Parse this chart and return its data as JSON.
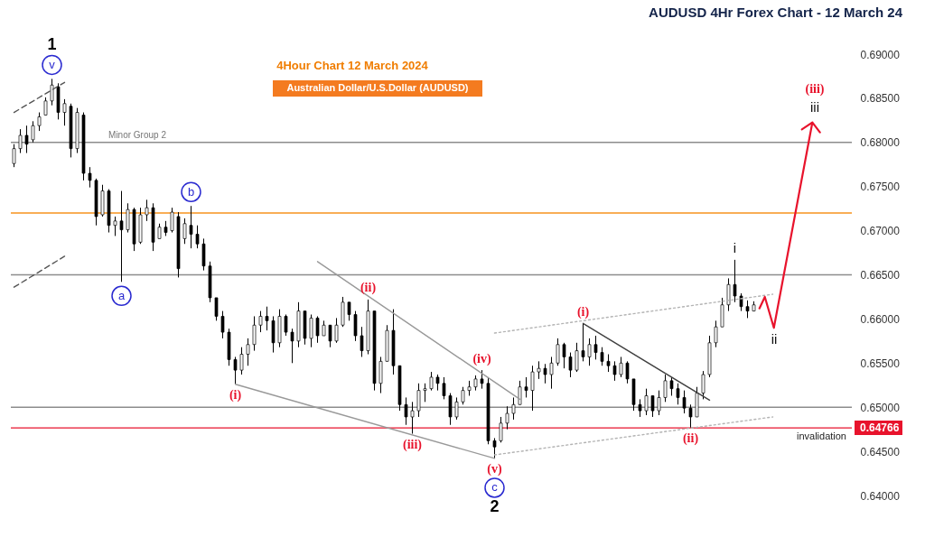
{
  "chart_data": {
    "type": "candlestick",
    "title": "AUDUSD 4Hr Forex Chart - 12 March 24",
    "subtitle": "4Hour Chart 12 March 2024",
    "categories": [
      null,
      null,
      null,
      null,
      null,
      null,
      null,
      null,
      null,
      null,
      null,
      null,
      null,
      null,
      null,
      null,
      null,
      null,
      null,
      null,
      null,
      null,
      null,
      null,
      null,
      null,
      null,
      null,
      null,
      null,
      null,
      null,
      null,
      null,
      null,
      null,
      null,
      null,
      null,
      null,
      null,
      null,
      null,
      null,
      null,
      null,
      null,
      null,
      null,
      null,
      null,
      null,
      null,
      null,
      null,
      null,
      null,
      null,
      null,
      null,
      null,
      null,
      null,
      null,
      null,
      null,
      null,
      null,
      null,
      null,
      null,
      null,
      null,
      null,
      null,
      null,
      null,
      null,
      null,
      null,
      null,
      null,
      null,
      null,
      null,
      null,
      null,
      null,
      null,
      null,
      null,
      null,
      null,
      null,
      null,
      null,
      null,
      null,
      null,
      null,
      null,
      null,
      null,
      null,
      null,
      null,
      null,
      null,
      null,
      null,
      null,
      null,
      null,
      null,
      null,
      null,
      null,
      null,
      null,
      null,
      null,
      null,
      null,
      null,
      null,
      null,
      null,
      null,
      null,
      null,
      null,
      null,
      null
    ],
    "color": "#000000",
    "ohlc": [
      [
        0.6776,
        0.6798,
        0.6772,
        0.6793
      ],
      [
        0.6793,
        0.6815,
        0.6788,
        0.6808
      ],
      [
        0.6808,
        0.6819,
        0.6788,
        0.6798
      ],
      [
        0.6803,
        0.6824,
        0.68,
        0.6819
      ],
      [
        0.6819,
        0.6834,
        0.6813,
        0.6829
      ],
      [
        0.6831,
        0.6851,
        0.6831,
        0.6847
      ],
      [
        0.6847,
        0.6872,
        0.6842,
        0.6865
      ],
      [
        0.6863,
        0.6867,
        0.6826,
        0.6834
      ],
      [
        0.6834,
        0.6849,
        0.6819,
        0.6844
      ],
      [
        0.6841,
        0.6844,
        0.6783,
        0.6793
      ],
      [
        0.6793,
        0.6839,
        0.6788,
        0.6834
      ],
      [
        0.6831,
        0.6834,
        0.6757,
        0.6765
      ],
      [
        0.6765,
        0.6772,
        0.6749,
        0.6757
      ],
      [
        0.6757,
        0.6759,
        0.6706,
        0.6716
      ],
      [
        0.6718,
        0.6752,
        0.6716,
        0.6745
      ],
      [
        0.6745,
        0.6747,
        0.6698,
        0.6706
      ],
      [
        0.6706,
        0.6716,
        0.6694,
        0.6711
      ],
      [
        0.6711,
        0.6745,
        0.6642,
        0.6701
      ],
      [
        0.6701,
        0.6731,
        0.6698,
        0.6724
      ],
      [
        0.6724,
        0.6726,
        0.6677,
        0.6685
      ],
      [
        0.6687,
        0.6726,
        0.6685,
        0.6718
      ],
      [
        0.6718,
        0.6735,
        0.6711,
        0.6726
      ],
      [
        0.6726,
        0.6731,
        0.6677,
        0.6687
      ],
      [
        0.6691,
        0.6708,
        0.6691,
        0.6704
      ],
      [
        0.6704,
        0.6711,
        0.6694,
        0.6698
      ],
      [
        0.67,
        0.6726,
        0.6698,
        0.6721
      ],
      [
        0.6716,
        0.6721,
        0.6647,
        0.6657
      ],
      [
        0.6691,
        0.6714,
        0.6685,
        0.6708
      ],
      [
        0.6706,
        0.6728,
        0.668,
        0.6696
      ],
      [
        0.6696,
        0.6706,
        0.668,
        0.6685
      ],
      [
        0.6685,
        0.6691,
        0.6655,
        0.666
      ],
      [
        0.666,
        0.6665,
        0.6619,
        0.6624
      ],
      [
        0.6624,
        0.6624,
        0.6598,
        0.6603
      ],
      [
        0.6603,
        0.6609,
        0.6578,
        0.6585
      ],
      [
        0.6585,
        0.6589,
        0.6547,
        0.6554
      ],
      [
        0.6554,
        0.6557,
        0.6526,
        0.6542
      ],
      [
        0.6542,
        0.6568,
        0.6537,
        0.656
      ],
      [
        0.656,
        0.6578,
        0.6547,
        0.6571
      ],
      [
        0.6571,
        0.6603,
        0.6564,
        0.6593
      ],
      [
        0.6593,
        0.6609,
        0.6585,
        0.6603
      ],
      [
        0.6603,
        0.6614,
        0.6587,
        0.6598
      ],
      [
        0.6598,
        0.6603,
        0.6562,
        0.6573
      ],
      [
        0.6573,
        0.6611,
        0.6568,
        0.6603
      ],
      [
        0.6603,
        0.6605,
        0.6581,
        0.6585
      ],
      [
        0.6585,
        0.6589,
        0.655,
        0.6575
      ],
      [
        0.6575,
        0.6619,
        0.6568,
        0.6609
      ],
      [
        0.6609,
        0.6609,
        0.6571,
        0.6578
      ],
      [
        0.6578,
        0.6605,
        0.6568,
        0.6601
      ],
      [
        0.6601,
        0.6603,
        0.6573,
        0.6581
      ],
      [
        0.6581,
        0.6598,
        0.6581,
        0.6593
      ],
      [
        0.6593,
        0.6593,
        0.6568,
        0.6575
      ],
      [
        0.6575,
        0.6601,
        0.6573,
        0.6593
      ],
      [
        0.6593,
        0.6625,
        0.6591,
        0.6619
      ],
      [
        0.6619,
        0.6619,
        0.6598,
        0.6605
      ],
      [
        0.6605,
        0.6609,
        0.6575,
        0.6581
      ],
      [
        0.6581,
        0.6591,
        0.6557,
        0.6564
      ],
      [
        0.6564,
        0.6622,
        0.656,
        0.6609
      ],
      [
        0.6609,
        0.6609,
        0.6519,
        0.6527
      ],
      [
        0.6527,
        0.6557,
        0.6516,
        0.6552
      ],
      [
        0.6552,
        0.6593,
        0.6552,
        0.6587
      ],
      [
        0.6587,
        0.6611,
        0.6537,
        0.6547
      ],
      [
        0.6547,
        0.6547,
        0.6496,
        0.6503
      ],
      [
        0.6503,
        0.6511,
        0.648,
        0.6489
      ],
      [
        0.6489,
        0.6506,
        0.647,
        0.6496
      ],
      [
        0.6496,
        0.6527,
        0.6489,
        0.6519
      ],
      [
        0.6519,
        0.6527,
        0.6506,
        0.6521
      ],
      [
        0.6521,
        0.654,
        0.6519,
        0.6534
      ],
      [
        0.6534,
        0.6537,
        0.6519,
        0.6527
      ],
      [
        0.6527,
        0.6534,
        0.6509,
        0.6513
      ],
      [
        0.6513,
        0.6516,
        0.648,
        0.6489
      ],
      [
        0.6489,
        0.6511,
        0.6486,
        0.6506
      ],
      [
        0.6506,
        0.6523,
        0.6503,
        0.6519
      ],
      [
        0.6519,
        0.653,
        0.6513,
        0.6523
      ],
      [
        0.6523,
        0.6536,
        0.6519,
        0.6532
      ],
      [
        0.6532,
        0.6542,
        0.6521,
        0.6527
      ],
      [
        0.6527,
        0.6534,
        0.6458,
        0.6462
      ],
      [
        0.6462,
        0.6465,
        0.6442,
        0.6455
      ],
      [
        0.6462,
        0.6489,
        0.646,
        0.6482
      ],
      [
        0.6482,
        0.6501,
        0.6475,
        0.6493
      ],
      [
        0.6493,
        0.6511,
        0.6486,
        0.6503
      ],
      [
        0.6503,
        0.653,
        0.6503,
        0.6523
      ],
      [
        0.6523,
        0.6534,
        0.6511,
        0.6519
      ],
      [
        0.6519,
        0.6547,
        0.6496,
        0.654
      ],
      [
        0.654,
        0.6552,
        0.6532,
        0.6544
      ],
      [
        0.6544,
        0.6549,
        0.6527,
        0.6537
      ],
      [
        0.6537,
        0.6557,
        0.6521,
        0.655
      ],
      [
        0.655,
        0.6578,
        0.6547,
        0.6571
      ],
      [
        0.6571,
        0.6573,
        0.6544,
        0.6557
      ],
      [
        0.6557,
        0.6562,
        0.6534,
        0.6542
      ],
      [
        0.6542,
        0.6573,
        0.654,
        0.6564
      ],
      [
        0.6564,
        0.6595,
        0.6552,
        0.6557
      ],
      [
        0.6557,
        0.6578,
        0.6547,
        0.6571
      ],
      [
        0.6571,
        0.6581,
        0.6554,
        0.6562
      ],
      [
        0.6562,
        0.6568,
        0.6547,
        0.6552
      ],
      [
        0.6552,
        0.656,
        0.654,
        0.6547
      ],
      [
        0.6547,
        0.6552,
        0.653,
        0.6537
      ],
      [
        0.6537,
        0.6557,
        0.6534,
        0.655
      ],
      [
        0.655,
        0.6552,
        0.6527,
        0.6532
      ],
      [
        0.6532,
        0.6532,
        0.6496,
        0.6503
      ],
      [
        0.6503,
        0.6509,
        0.6489,
        0.6496
      ],
      [
        0.6496,
        0.6521,
        0.6491,
        0.6513
      ],
      [
        0.6513,
        0.6513,
        0.6489,
        0.6496
      ],
      [
        0.6496,
        0.6519,
        0.6491,
        0.6511
      ],
      [
        0.6511,
        0.6537,
        0.6506,
        0.653
      ],
      [
        0.653,
        0.6534,
        0.6513,
        0.6521
      ],
      [
        0.6521,
        0.6527,
        0.6503,
        0.6511
      ],
      [
        0.6511,
        0.6519,
        0.6493,
        0.6499
      ],
      [
        0.6499,
        0.6503,
        0.6477,
        0.6489
      ],
      [
        0.6489,
        0.6523,
        0.6489,
        0.6516
      ],
      [
        0.6516,
        0.6541,
        0.6509,
        0.6537
      ],
      [
        0.6537,
        0.6581,
        0.6534,
        0.6573
      ],
      [
        0.6573,
        0.6598,
        0.6568,
        0.6591
      ],
      [
        0.6591,
        0.6624,
        0.6591,
        0.6616
      ],
      [
        0.6616,
        0.6646,
        0.6609,
        0.6639
      ],
      [
        0.6639,
        0.6667,
        0.6619,
        0.6626
      ],
      [
        0.6626,
        0.6629,
        0.6609,
        0.6614
      ],
      [
        0.6614,
        0.6621,
        0.6601,
        0.6609
      ],
      [
        0.6609,
        0.662,
        0.6609,
        0.6616
      ],
      null,
      null,
      null,
      null,
      null,
      null,
      null,
      null,
      null,
      null,
      null,
      null,
      null,
      null,
      null
    ],
    "series": [
      {
        "type": "line",
        "color": "#555555",
        "line_style": "dashed",
        "values": [
          0.6834,
          null,
          null,
          null,
          null,
          null,
          null,
          null,
          0.6868,
          null,
          null,
          null,
          null,
          null,
          null,
          null,
          null,
          null,
          null,
          null,
          null,
          null,
          null,
          null,
          null,
          null,
          null,
          null,
          null,
          null,
          null,
          null,
          null,
          null,
          null,
          null,
          null,
          null,
          null,
          null,
          null,
          null,
          null,
          null,
          null,
          null,
          null,
          null,
          null,
          null,
          null,
          null,
          null,
          null,
          null,
          null,
          null,
          null,
          null,
          null,
          null,
          null,
          null,
          null,
          null,
          null,
          null,
          null,
          null,
          null,
          null,
          null,
          null,
          null,
          null,
          null,
          null,
          null,
          null,
          null,
          null,
          null,
          null,
          null,
          null,
          null,
          null,
          null,
          null,
          null,
          null,
          null,
          null,
          null,
          null,
          null,
          null,
          null,
          null,
          null,
          null,
          null,
          null,
          null,
          null,
          null,
          null,
          null,
          null,
          null,
          null,
          null,
          null,
          null,
          null,
          null,
          null,
          null,
          null,
          null,
          null,
          null,
          null,
          null,
          null,
          null,
          null,
          null,
          null,
          null,
          null,
          null,
          null
        ]
      },
      {
        "type": "line",
        "color": "#555555",
        "line_style": "dashed",
        "values": [
          0.6636,
          null,
          null,
          null,
          null,
          null,
          null,
          null,
          0.6671,
          null,
          null,
          null,
          null,
          null,
          null,
          null,
          null,
          null,
          null,
          null,
          null,
          null,
          null,
          null,
          null,
          null,
          null,
          null,
          null,
          null,
          null,
          null,
          null,
          null,
          null,
          null,
          null,
          null,
          null,
          null,
          null,
          null,
          null,
          null,
          null,
          null,
          null,
          null,
          null,
          null,
          null,
          null,
          null,
          null,
          null,
          null,
          null,
          null,
          null,
          null,
          null,
          null,
          null,
          null,
          null,
          null,
          null,
          null,
          null,
          null,
          null,
          null,
          null,
          null,
          null,
          null,
          null,
          null,
          null,
          null,
          null,
          null,
          null,
          null,
          null,
          null,
          null,
          null,
          null,
          null,
          null,
          null,
          null,
          null,
          null,
          null,
          null,
          null,
          null,
          null,
          null,
          null,
          null,
          null,
          null,
          null,
          null,
          null,
          null,
          null,
          null,
          null,
          null,
          null,
          null,
          null,
          null,
          null,
          null,
          null,
          null,
          null,
          null,
          null,
          null,
          null,
          null,
          null,
          null,
          null,
          null,
          null,
          null
        ]
      },
      {
        "type": "line",
        "color": "#999999",
        "values": [
          null,
          null,
          null,
          null,
          null,
          null,
          null,
          null,
          null,
          null,
          null,
          null,
          null,
          null,
          null,
          null,
          null,
          null,
          null,
          null,
          null,
          null,
          null,
          null,
          null,
          null,
          null,
          null,
          null,
          null,
          null,
          null,
          null,
          null,
          null,
          null,
          null,
          null,
          null,
          null,
          null,
          null,
          null,
          null,
          null,
          null,
          null,
          null,
          0.6665,
          null,
          null,
          null,
          null,
          null,
          null,
          null,
          null,
          null,
          null,
          null,
          null,
          null,
          null,
          null,
          null,
          null,
          null,
          null,
          null,
          null,
          null,
          null,
          null,
          null,
          null,
          null,
          null,
          null,
          null,
          null,
          0.6509,
          null,
          null,
          null,
          null,
          null,
          null,
          null,
          null,
          null,
          null,
          null,
          null,
          null,
          null,
          null,
          null,
          null,
          null,
          null,
          null,
          null,
          null,
          null,
          null,
          null,
          null,
          null,
          null,
          null,
          null,
          null,
          null,
          null,
          null,
          null,
          null,
          null,
          null,
          null,
          null,
          null,
          null,
          null,
          null,
          null,
          null,
          null,
          null,
          null,
          null,
          null,
          null
        ]
      },
      {
        "type": "line",
        "color": "#999999",
        "values": [
          null,
          null,
          null,
          null,
          null,
          null,
          null,
          null,
          null,
          null,
          null,
          null,
          null,
          null,
          null,
          null,
          null,
          null,
          null,
          null,
          null,
          null,
          null,
          null,
          null,
          null,
          null,
          null,
          null,
          null,
          null,
          null,
          null,
          null,
          null,
          0.6526,
          null,
          null,
          null,
          null,
          null,
          null,
          null,
          null,
          null,
          null,
          null,
          null,
          null,
          null,
          null,
          null,
          null,
          null,
          null,
          null,
          null,
          null,
          null,
          null,
          null,
          null,
          null,
          null,
          null,
          null,
          null,
          null,
          null,
          null,
          null,
          null,
          null,
          null,
          null,
          null,
          0.6442,
          null,
          null,
          null,
          null,
          null,
          null,
          null,
          null,
          null,
          null,
          null,
          null,
          null,
          null,
          null,
          null,
          null,
          null,
          null,
          null,
          null,
          null,
          null,
          null,
          null,
          null,
          null,
          null,
          null,
          null,
          null,
          null,
          null,
          null,
          null,
          null,
          null,
          null,
          null,
          null,
          null,
          null,
          null,
          null,
          null,
          null,
          null,
          null,
          null,
          null,
          null,
          null,
          null,
          null,
          null,
          null
        ]
      },
      {
        "type": "line",
        "color": "#b4b4b4",
        "line_style": "dotted",
        "values": [
          null,
          null,
          null,
          null,
          null,
          null,
          null,
          null,
          null,
          null,
          null,
          null,
          null,
          null,
          null,
          null,
          null,
          null,
          null,
          null,
          null,
          null,
          null,
          null,
          null,
          null,
          null,
          null,
          null,
          null,
          null,
          null,
          null,
          null,
          null,
          null,
          null,
          null,
          null,
          null,
          null,
          null,
          null,
          null,
          null,
          null,
          null,
          null,
          null,
          null,
          null,
          null,
          null,
          null,
          null,
          null,
          null,
          null,
          null,
          null,
          null,
          null,
          null,
          null,
          null,
          null,
          null,
          null,
          null,
          null,
          null,
          null,
          null,
          null,
          null,
          null,
          0.6584,
          null,
          null,
          null,
          null,
          null,
          null,
          null,
          null,
          null,
          null,
          null,
          null,
          null,
          null,
          null,
          null,
          null,
          null,
          null,
          null,
          null,
          null,
          null,
          null,
          null,
          null,
          null,
          null,
          null,
          null,
          null,
          null,
          null,
          null,
          null,
          null,
          null,
          null,
          null,
          null,
          null,
          null,
          null,
          0.6628,
          null,
          null,
          null,
          null,
          null,
          null,
          null,
          null,
          null,
          null,
          null,
          null
        ]
      },
      {
        "type": "line",
        "color": "#b4b4b4",
        "line_style": "dotted",
        "values": [
          null,
          null,
          null,
          null,
          null,
          null,
          null,
          null,
          null,
          null,
          null,
          null,
          null,
          null,
          null,
          null,
          null,
          null,
          null,
          null,
          null,
          null,
          null,
          null,
          null,
          null,
          null,
          null,
          null,
          null,
          null,
          null,
          null,
          null,
          null,
          null,
          null,
          null,
          null,
          null,
          null,
          null,
          null,
          null,
          null,
          null,
          null,
          null,
          null,
          null,
          null,
          null,
          null,
          null,
          null,
          null,
          null,
          null,
          null,
          null,
          null,
          null,
          null,
          null,
          null,
          null,
          null,
          null,
          null,
          null,
          null,
          null,
          null,
          null,
          null,
          null,
          0.6446,
          null,
          null,
          null,
          null,
          null,
          null,
          null,
          null,
          null,
          null,
          null,
          null,
          null,
          null,
          null,
          null,
          null,
          null,
          null,
          null,
          null,
          null,
          null,
          null,
          null,
          null,
          null,
          null,
          null,
          null,
          null,
          null,
          null,
          null,
          null,
          null,
          null,
          null,
          null,
          null,
          null,
          null,
          null,
          0.6489,
          null,
          null,
          null,
          null,
          null,
          null,
          null,
          null,
          null,
          null,
          null,
          null
        ]
      },
      {
        "type": "line",
        "color": "#404040",
        "values": [
          null,
          null,
          null,
          null,
          null,
          null,
          null,
          null,
          null,
          null,
          null,
          null,
          null,
          null,
          null,
          null,
          null,
          null,
          null,
          null,
          null,
          null,
          null,
          null,
          null,
          null,
          null,
          null,
          null,
          null,
          null,
          null,
          null,
          null,
          null,
          null,
          null,
          null,
          null,
          null,
          null,
          null,
          null,
          null,
          null,
          null,
          null,
          null,
          null,
          null,
          null,
          null,
          null,
          null,
          null,
          null,
          null,
          null,
          null,
          null,
          null,
          null,
          null,
          null,
          null,
          null,
          null,
          null,
          null,
          null,
          null,
          null,
          null,
          null,
          null,
          null,
          null,
          null,
          null,
          null,
          null,
          null,
          null,
          null,
          null,
          null,
          null,
          null,
          null,
          null,
          0.6595,
          null,
          null,
          null,
          null,
          null,
          null,
          null,
          null,
          null,
          null,
          null,
          null,
          null,
          null,
          null,
          null,
          null,
          null,
          null,
          0.6508,
          null,
          null,
          null,
          null,
          null,
          null,
          null,
          null,
          null,
          null,
          null,
          null,
          null,
          null,
          null,
          null,
          null,
          null,
          null,
          null,
          null,
          null
        ]
      }
    ],
    "ylim": [
      0.64,
      0.69
    ],
    "yticks": [
      {
        "value": 0.64,
        "label": "0.64000"
      },
      {
        "value": 0.645,
        "label": "0.64500"
      },
      {
        "value": 0.64766,
        "label": "0.64766"
      },
      {
        "value": 0.65,
        "label": "0.65000"
      },
      {
        "value": 0.655,
        "label": "0.65500"
      },
      {
        "value": 0.66,
        "label": "0.66000"
      },
      {
        "value": 0.665,
        "label": "0.66500"
      },
      {
        "value": 0.67,
        "label": "0.67000"
      },
      {
        "value": 0.675,
        "label": "0.67500"
      },
      {
        "value": 0.68,
        "label": "0.68000"
      },
      {
        "value": 0.685,
        "label": "0.68500"
      },
      {
        "value": 0.69,
        "label": "0.69000"
      }
    ],
    "tick_labels": "y",
    "ref_lines": [
      {
        "axis": "y",
        "value": 0.68,
        "label": "Minor Group 2",
        "color": "#8c8c8c"
      },
      {
        "axis": "y",
        "value": 0.672,
        "color": "#f7931e"
      },
      {
        "axis": "y",
        "value": 0.665,
        "color": "#8c8c8c"
      },
      {
        "axis": "y",
        "value": 0.65,
        "color": "#8c8c8c"
      },
      {
        "axis": "y",
        "value": 0.64766,
        "label": "invalidation",
        "color": "#e8132c"
      }
    ],
    "annotations": [
      "Australian Dollar/U.S.Dollar (AUDUSD)",
      {
        "text": "v",
        "y": 0.6872
      },
      {
        "text": "1",
        "y": 0.6872
      },
      {
        "text": "a",
        "y": 0.6642
      },
      {
        "text": "b",
        "y": 0.6728
      },
      {
        "text": "(i)",
        "y": 0.6526
      },
      {
        "text": "(ii)",
        "y": 0.6622
      },
      {
        "text": "(iii)",
        "y": 0.647
      },
      {
        "text": "(iv)",
        "y": 0.6542
      },
      {
        "text": "(v)",
        "y": 0.6442
      },
      {
        "text": "c",
        "y": 0.6442
      },
      {
        "text": "2",
        "y": 0.6442
      },
      {
        "text": "(i)",
        "y": 0.6595
      },
      {
        "text": "(ii)",
        "y": 0.6477
      },
      {
        "text": "i",
        "y": 0.6667
      },
      "ii",
      "(iii)",
      "iii"
    ]
  }
}
